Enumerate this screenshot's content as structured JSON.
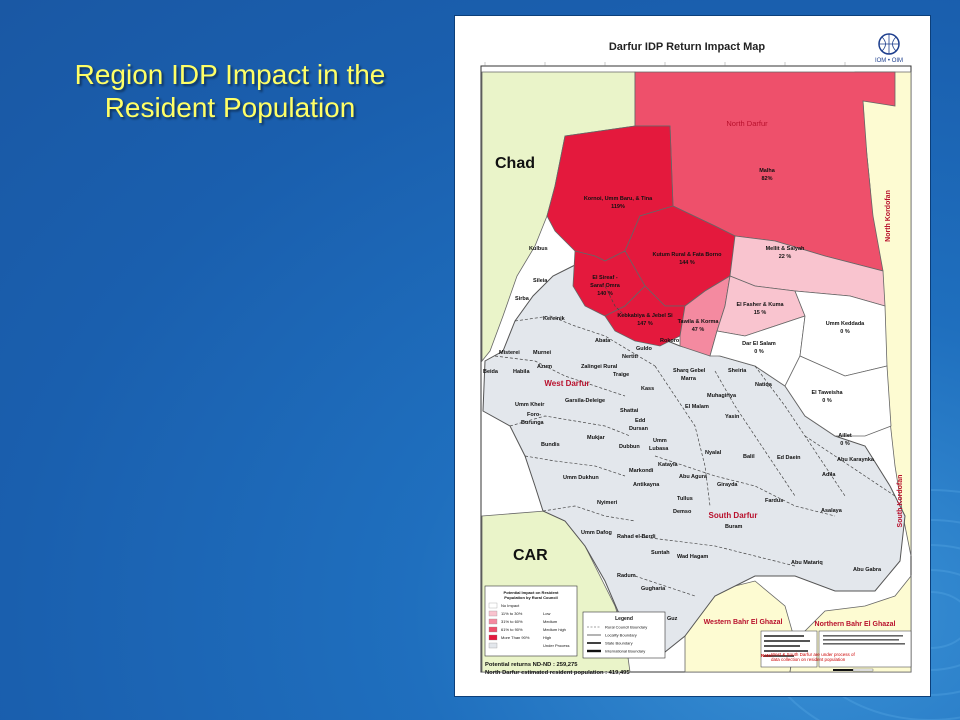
{
  "slide": {
    "title": "Region IDP Impact in the Resident Population"
  },
  "map": {
    "title": "Darfur IDP Return Impact Map",
    "logo_text": "IOM • OIM",
    "countries": {
      "chad": "Chad",
      "car": "CAR"
    },
    "states": {
      "north_darfur": "North Darfur",
      "west_darfur": "West Darfur",
      "south_darfur": "South Darfur",
      "north_kordofan": "North Kordofan",
      "south_kordofan": "South Kordofan",
      "western_bahr": "Western Bahr El Ghazal",
      "northern_bahr": "Northern Bahr El Ghazal"
    },
    "impact_labels": {
      "kornoi": {
        "name": "Kornoi, Umm Baru, & Tina",
        "value": "119%"
      },
      "malha": {
        "name": "Malha",
        "value": "82%"
      },
      "kutum": {
        "name": "Kutum Rural & Fata Borno",
        "value": "144 %"
      },
      "mellit": {
        "name": "Mellit & Saiyah",
        "value": "22 %"
      },
      "el_sireaf": {
        "name_lines": [
          "El Sireaf -",
          "Saraf Omra"
        ],
        "value": "140 %"
      },
      "kebkabiya": {
        "name": "Kebkabiya & Jebel Si",
        "value": "147 %"
      },
      "tawila": {
        "name": "Tawila & Korma",
        "value": "47 %"
      },
      "el_fasher": {
        "name": "El Fasher & Kuma",
        "value": "15 %"
      },
      "umm_keddada": {
        "name": "Umm Keddada",
        "value": "0 %"
      },
      "dar_el_salam": {
        "name": "Dar El Salam",
        "value": "0 %"
      },
      "el_taweisha": {
        "name": "El Taweisha",
        "value": "0 %"
      },
      "aillet": {
        "name": "Aillet",
        "value": "0 %"
      }
    },
    "localities": {
      "kulbus": "Kulbus",
      "sileia": "Sileia",
      "sirba": "Sirba",
      "kereinik": "Kereinik",
      "misterei": "Misterei",
      "murnei": "Murnei",
      "beida": "Beida",
      "habila": "Habila",
      "azum": "Azum",
      "abata": "Abata",
      "guldo": "Guldo",
      "nertiti": "Nertiti",
      "rokoro": "Rokoro",
      "zalingei": "Zalingei Rural",
      "traige": "Traige",
      "umm_kheir": "Umm Kheir",
      "garsila": "Garsila-Deleige",
      "foro": "Foro-",
      "burunga": "Burunga",
      "bundis": "Bundis",
      "mukjar": "Mukjar",
      "umm_dukhun": "Umm Dukhun",
      "sharq_gebel": "Sharq Gebel",
      "marra": "Marra",
      "sheiria": "Sheiria",
      "natiqa": "Natiqa",
      "muhagiriya": "Muhagiriya",
      "kass": "Kass",
      "el_malam": "El Malam",
      "shattai": "Shattai",
      "edd": "Edd",
      "dursan": "Dursan",
      "yasin": "Yasin",
      "umm": "Umm",
      "lubasa": "Lubasa",
      "dubbun": "Dubbun",
      "nyalal": "Nyalal",
      "balil": "Balil",
      "ed_daein": "Ed Daein",
      "markondi": "Markondi",
      "katayla": "Katayla",
      "abu_agura": "Abu Agura",
      "antikayna": "Antikayna",
      "abu_karaynka": "Abu Karaynka",
      "adila": "Adila",
      "girayda": "Girayda",
      "nyimeri": "Nyimeri",
      "tullus": "Tullus",
      "demso": "Demso",
      "fardus": "Fardus",
      "buram": "Buram",
      "asalaya": "Asalaya",
      "umm_dafog": "Umm Dafog",
      "rahad": "Rahad el Berdi",
      "suntah": "Suntah",
      "wad_hagam": "Wad Hagam",
      "abu_matariq": "Abu Matariq",
      "abu_gabra": "Abu Gabra",
      "radum": "Radum",
      "gugharia": "Gugharia",
      "guz": "Guz"
    },
    "impact_legend": {
      "title_lines": [
        "Potential Impact on Resident",
        "Population by Rural Council"
      ],
      "items": [
        {
          "range": "No Impact",
          "level": "",
          "color": "#ffffff"
        },
        {
          "range": "11% to 30%",
          "level": "Low",
          "color": "#f9c4cf"
        },
        {
          "range": "31% to 60%",
          "level": "Medium",
          "color": "#f48aa0"
        },
        {
          "range": "61% to 90%",
          "level": "Medium high",
          "color": "#ee506b"
        },
        {
          "range": "More Than 90%",
          "level": "High",
          "color": "#e4193d"
        },
        {
          "range": "",
          "level": "Under Process",
          "color": "#e3e7ec"
        }
      ]
    },
    "line_legend": {
      "title": "Legend",
      "items": [
        "Rural Council Boundary",
        "Locality Boundary",
        "State Boundary",
        "International Boundary"
      ]
    },
    "stats": {
      "line1": "Potential returns ND-ND : 259,275",
      "line2": "North Darfur estimated resident population : 419,495"
    },
    "note": {
      "label": "Note:",
      "text": "West & South Darfur are under process of data collection on resident population"
    },
    "colors": {
      "high": "#e4193d",
      "medium_high": "#ee506b",
      "medium": "#f48aa0",
      "low": "#f9c4cf",
      "none": "#ffffff",
      "under_process": "#e3e7ec",
      "neighbor_green": "#eaf4c9",
      "neighbor_cream": "#fdfbd2",
      "state_label": "#b8102c"
    }
  }
}
